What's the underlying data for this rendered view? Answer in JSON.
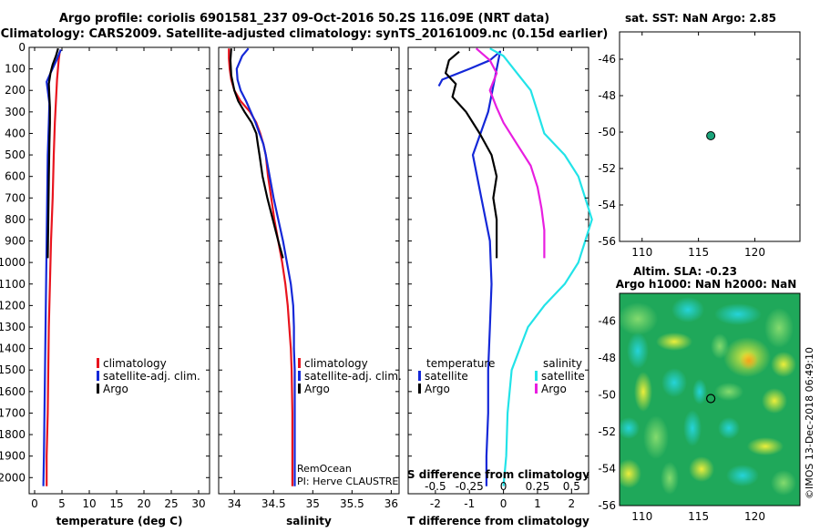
{
  "header": {
    "title_line1": "Argo profile: coriolis 6901581_237 09-Oct-2016 50.2S 116.09E (NRT data)",
    "title_line2": "Climatology: CARS2009. Satellite-adjusted climatology: synTS_20161009.nc (0.15d earlier)"
  },
  "colors": {
    "climatology": "#e8141e",
    "satellite": "#1428d8",
    "argo": "#000000",
    "sat_salinity": "#22e3e8",
    "argo_salinity": "#e81ee0",
    "marker": "#1aa37a"
  },
  "depth_axis": {
    "ylim": [
      2075,
      0
    ],
    "ticks": [
      0,
      100,
      200,
      300,
      400,
      500,
      600,
      700,
      800,
      900,
      1000,
      1100,
      1200,
      1300,
      1400,
      1500,
      1600,
      1700,
      1800,
      1900,
      2000
    ]
  },
  "chart_data": [
    {
      "type": "line",
      "id": "temperature",
      "xlabel": "temperature (deg C)",
      "xlim": [
        -1,
        32
      ],
      "xticks": [
        0,
        5,
        10,
        15,
        20,
        25,
        30
      ],
      "legend": [
        "climatology",
        "satellite-adj. clim.",
        "Argo"
      ],
      "series": [
        {
          "name": "climatology",
          "color_key": "climatology",
          "points": [
            [
              4.6,
              20
            ],
            [
              4.4,
              60
            ],
            [
              4.1,
              150
            ],
            [
              3.9,
              250
            ],
            [
              3.7,
              350
            ],
            [
              3.5,
              500
            ],
            [
              3.3,
              700
            ],
            [
              3.0,
              900
            ],
            [
              2.8,
              1100
            ],
            [
              2.6,
              1300
            ],
            [
              2.5,
              1500
            ],
            [
              2.4,
              1700
            ],
            [
              2.2,
              1900
            ],
            [
              2.2,
              2040
            ]
          ]
        },
        {
          "name": "satellite-adj. clim.",
          "color_key": "satellite",
          "points": [
            [
              4.8,
              10
            ],
            [
              4.0,
              60
            ],
            [
              2.9,
              120
            ],
            [
              2.2,
              160
            ],
            [
              2.4,
              200
            ],
            [
              2.7,
              260
            ],
            [
              2.6,
              350
            ],
            [
              2.4,
              500
            ],
            [
              2.3,
              700
            ],
            [
              2.2,
              900
            ],
            [
              2.1,
              1100
            ],
            [
              2.0,
              1300
            ],
            [
              1.9,
              1500
            ],
            [
              1.8,
              1700
            ],
            [
              1.7,
              1900
            ],
            [
              1.6,
              2040
            ]
          ]
        },
        {
          "name": "Argo",
          "color_key": "argo",
          "points": [
            [
              4.3,
              5
            ],
            [
              3.9,
              40
            ],
            [
              3.3,
              80
            ],
            [
              2.9,
              120
            ],
            [
              2.6,
              170
            ],
            [
              2.7,
              230
            ],
            [
              2.8,
              280
            ],
            [
              2.8,
              350
            ],
            [
              2.7,
              450
            ],
            [
              2.6,
              600
            ],
            [
              2.5,
              800
            ],
            [
              2.4,
              980
            ]
          ]
        }
      ]
    },
    {
      "type": "line",
      "id": "salinity",
      "xlabel": "salinity",
      "xlim": [
        33.8,
        36.1
      ],
      "xticks": [
        34,
        34.5,
        35,
        35.5,
        36
      ],
      "legend": [
        "climatology",
        "satellite-adj. clim.",
        "Argo"
      ],
      "annotation_line1": "RemOcean",
      "annotation_line2": "PI: Herve CLAUSTRE",
      "series": [
        {
          "name": "climatology",
          "color_key": "climatology",
          "points": [
            [
              33.93,
              5
            ],
            [
              33.93,
              50
            ],
            [
              33.94,
              100
            ],
            [
              33.96,
              150
            ],
            [
              34.0,
              200
            ],
            [
              34.08,
              250
            ],
            [
              34.2,
              300
            ],
            [
              34.28,
              350
            ],
            [
              34.33,
              400
            ],
            [
              34.37,
              450
            ],
            [
              34.4,
              500
            ],
            [
              34.43,
              600
            ],
            [
              34.47,
              700
            ],
            [
              34.51,
              800
            ],
            [
              34.56,
              900
            ],
            [
              34.61,
              1000
            ],
            [
              34.65,
              1100
            ],
            [
              34.68,
              1200
            ],
            [
              34.7,
              1300
            ],
            [
              34.72,
              1400
            ],
            [
              34.73,
              1500
            ],
            [
              34.74,
              1700
            ],
            [
              34.74,
              2040
            ]
          ]
        },
        {
          "name": "satellite-adj. clim.",
          "color_key": "satellite",
          "points": [
            [
              34.18,
              5
            ],
            [
              34.1,
              40
            ],
            [
              34.03,
              100
            ],
            [
              34.04,
              150
            ],
            [
              34.08,
              200
            ],
            [
              34.15,
              250
            ],
            [
              34.21,
              300
            ],
            [
              34.27,
              350
            ],
            [
              34.32,
              400
            ],
            [
              34.37,
              450
            ],
            [
              34.4,
              500
            ],
            [
              34.45,
              600
            ],
            [
              34.5,
              700
            ],
            [
              34.56,
              800
            ],
            [
              34.62,
              900
            ],
            [
              34.67,
              1000
            ],
            [
              34.72,
              1100
            ],
            [
              34.75,
              1200
            ],
            [
              34.76,
              1300
            ],
            [
              34.76,
              1400
            ],
            [
              34.77,
              1500
            ],
            [
              34.77,
              1700
            ],
            [
              34.77,
              2040
            ]
          ]
        },
        {
          "name": "Argo",
          "color_key": "argo",
          "points": [
            [
              33.96,
              5
            ],
            [
              33.95,
              60
            ],
            [
              33.96,
              130
            ],
            [
              34.0,
              200
            ],
            [
              34.05,
              250
            ],
            [
              34.13,
              300
            ],
            [
              34.22,
              350
            ],
            [
              34.28,
              400
            ],
            [
              34.3,
              450
            ],
            [
              34.32,
              500
            ],
            [
              34.36,
              600
            ],
            [
              34.42,
              700
            ],
            [
              34.49,
              800
            ],
            [
              34.56,
              900
            ],
            [
              34.62,
              980
            ]
          ]
        }
      ]
    },
    {
      "type": "line",
      "id": "differences",
      "xlabel": "T difference from climatology",
      "xlabel_top": "S difference from climatology",
      "xlim": [
        -2.8,
        2.5
      ],
      "xticks": [
        -2,
        -1,
        0,
        1,
        2
      ],
      "s_ticks": [
        "-0.5",
        "-0.25",
        "0",
        "0.25",
        "0.5"
      ],
      "s_scale": 4,
      "legend_temperature_title": "temperature",
      "legend_salinity_title": "salinity",
      "legend_satellite": "satellite",
      "legend_argo": "Argo",
      "series": [
        {
          "name": "T satellite",
          "color_key": "satellite",
          "points": [
            [
              -1.9,
              180
            ],
            [
              -1.8,
              150
            ],
            [
              -1.0,
              100
            ],
            [
              -0.4,
              60
            ],
            [
              -0.1,
              20
            ],
            [
              -0.45,
              300
            ],
            [
              -0.9,
              500
            ],
            [
              -0.65,
              700
            ],
            [
              -0.4,
              900
            ],
            [
              -0.35,
              1100
            ],
            [
              -0.4,
              1300
            ],
            [
              -0.45,
              1500
            ],
            [
              -0.45,
              1700
            ],
            [
              -0.5,
              1900
            ],
            [
              -0.5,
              2040
            ]
          ]
        },
        {
          "name": "T Argo",
          "color_key": "argo",
          "points": [
            [
              -1.3,
              20
            ],
            [
              -1.6,
              60
            ],
            [
              -1.7,
              120
            ],
            [
              -1.4,
              170
            ],
            [
              -1.5,
              230
            ],
            [
              -1.1,
              300
            ],
            [
              -0.7,
              400
            ],
            [
              -0.35,
              500
            ],
            [
              -0.2,
              600
            ],
            [
              -0.3,
              700
            ],
            [
              -0.2,
              800
            ],
            [
              -0.2,
              900
            ],
            [
              -0.2,
              980
            ]
          ]
        },
        {
          "name": "S satellite",
          "color_key": "sat_salinity",
          "points": [
            [
              -0.1,
              5
            ],
            [
              0,
              40
            ],
            [
              0.1,
              120
            ],
            [
              0.2,
              200
            ],
            [
              0.25,
              300
            ],
            [
              0.3,
              400
            ],
            [
              0.45,
              500
            ],
            [
              0.55,
              600
            ],
            [
              0.6,
              700
            ],
            [
              0.65,
              800
            ],
            [
              0.6,
              900
            ],
            [
              0.55,
              1000
            ],
            [
              0.45,
              1100
            ],
            [
              0.3,
              1200
            ],
            [
              0.18,
              1300
            ],
            [
              0.12,
              1400
            ],
            [
              0.06,
              1500
            ],
            [
              0.03,
              1700
            ],
            [
              0.02,
              1900
            ],
            [
              0.0,
              2040
            ]
          ]
        },
        {
          "name": "S Argo",
          "color_key": "argo_salinity",
          "points": [
            [
              -0.2,
              5
            ],
            [
              -0.1,
              60
            ],
            [
              -0.05,
              120
            ],
            [
              -0.1,
              200
            ],
            [
              -0.05,
              280
            ],
            [
              0.0,
              350
            ],
            [
              0.1,
              450
            ],
            [
              0.2,
              550
            ],
            [
              0.25,
              650
            ],
            [
              0.28,
              750
            ],
            [
              0.3,
              850
            ],
            [
              0.3,
              980
            ]
          ]
        }
      ]
    },
    {
      "type": "scatter",
      "id": "sst_map",
      "title": "sat. SST: NaN Argo: 2.85",
      "xlim": [
        108,
        124
      ],
      "ylim": [
        -56,
        -44.5
      ],
      "xticks": [
        110,
        115,
        120
      ],
      "yticks": [
        -46,
        -48,
        -50,
        -52,
        -54,
        -56
      ],
      "point": {
        "lon": 116.09,
        "lat": -50.2
      }
    },
    {
      "type": "heatmap",
      "id": "sla_map",
      "title_line1": "Altim. SLA: -0.23",
      "title_line2": "Argo h1000: NaN h2000: NaN",
      "xlim": [
        108,
        124
      ],
      "ylim": [
        -56,
        -44.5
      ],
      "xticks": [
        110,
        115,
        120
      ],
      "yticks": [
        -46,
        -48,
        -50,
        -52,
        -54,
        -56
      ],
      "point": {
        "lon": 116.09,
        "lat": -50.2
      }
    }
  ],
  "footer": {
    "watermark": "©IMOS 13-Dec-2018 06:49:10"
  }
}
